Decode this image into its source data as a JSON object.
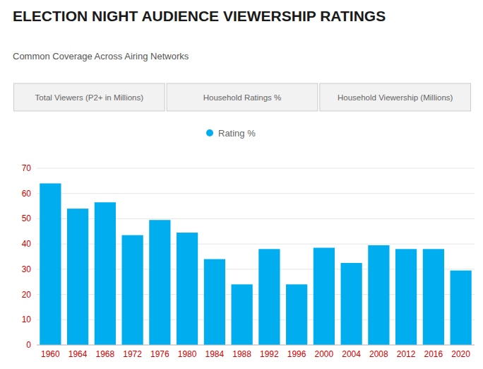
{
  "chart_data": {
    "type": "bar",
    "title": "ELECTION NIGHT AUDIENCE VIEWERSHIP RATINGS",
    "subtitle": "Common Coverage Across Airing Networks",
    "annotations": [
      "Total Viewers (P2+ in Millions)",
      "Household Ratings %",
      "Household Viewership (Millions)"
    ],
    "categories": [
      "1960",
      "1964",
      "1968",
      "1972",
      "1976",
      "1980",
      "1984",
      "1988",
      "1992",
      "1996",
      "2000",
      "2004",
      "2008",
      "2012",
      "2016",
      "2020"
    ],
    "series": [
      {
        "name": "Rating %",
        "color": "#00AEEF",
        "values": [
          64.0,
          54.0,
          56.5,
          43.5,
          49.5,
          44.5,
          34.0,
          24.0,
          38.0,
          24.0,
          38.5,
          32.5,
          39.5,
          38.0,
          38.0,
          29.5
        ]
      }
    ],
    "ylim": [
      0,
      70
    ],
    "yticks": [
      0,
      10,
      20,
      30,
      40,
      50,
      60,
      70
    ],
    "grid": true,
    "legend": "top"
  }
}
